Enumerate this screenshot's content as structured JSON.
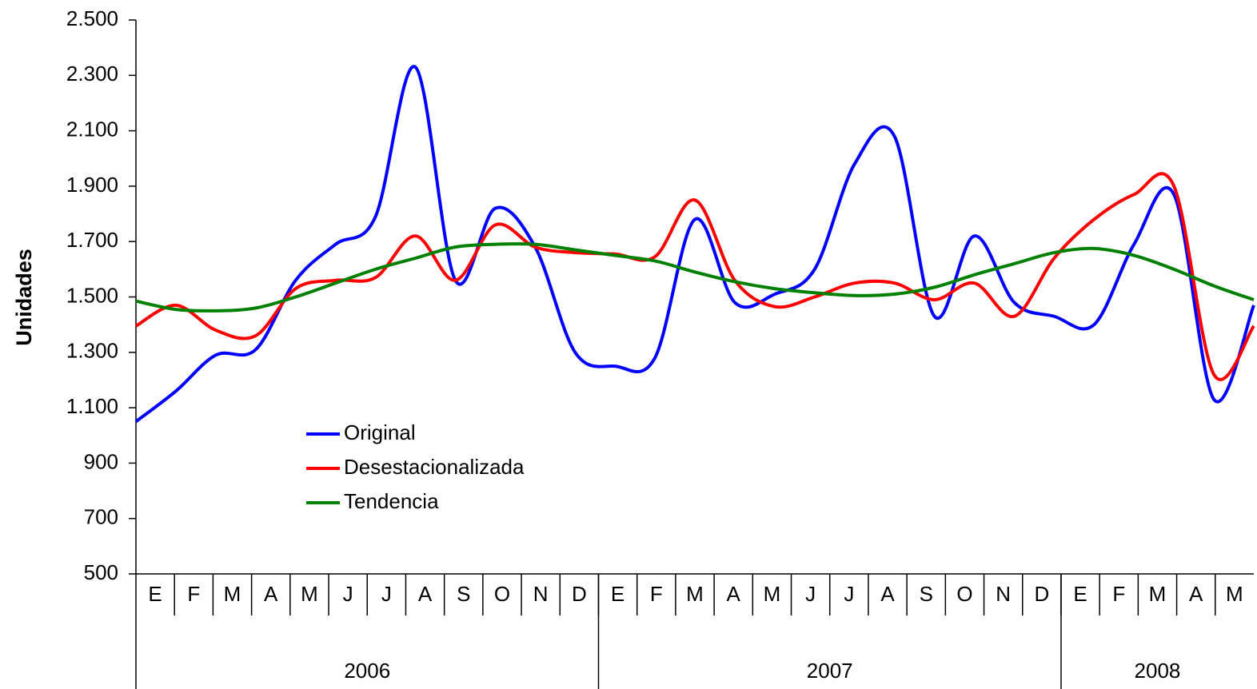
{
  "chart_data": {
    "type": "line",
    "y_label": "Unidades",
    "categories": [
      "E",
      "F",
      "M",
      "A",
      "M",
      "J",
      "J",
      "A",
      "S",
      "O",
      "N",
      "D",
      "E",
      "F",
      "M",
      "A",
      "M",
      "J",
      "J",
      "A",
      "S",
      "O",
      "N",
      "D",
      "E",
      "F",
      "M",
      "A",
      "M"
    ],
    "groups": [
      {
        "label": "2006",
        "size": 12
      },
      {
        "label": "2007",
        "size": 12
      },
      {
        "label": "2008",
        "size": 5
      }
    ],
    "series": [
      {
        "name": "Original",
        "color": "#0000ff",
        "values": [
          1050,
          1160,
          1290,
          1310,
          1560,
          1690,
          1790,
          2330,
          1560,
          1820,
          1680,
          1300,
          1250,
          1280,
          1780,
          1480,
          1510,
          1600,
          1980,
          2080,
          1430,
          1720,
          1480,
          1430,
          1400,
          1690,
          1870,
          1130,
          1470
        ]
      },
      {
        "name": "Desestacionalizada",
        "color": "#ff0000",
        "values": [
          1395,
          1470,
          1380,
          1360,
          1530,
          1560,
          1570,
          1720,
          1560,
          1760,
          1680,
          1660,
          1655,
          1645,
          1850,
          1560,
          1465,
          1500,
          1550,
          1550,
          1490,
          1550,
          1430,
          1640,
          1780,
          1870,
          1900,
          1220,
          1395
        ]
      },
      {
        "name": "Tendencia",
        "color": "#008000",
        "values": [
          1485,
          1455,
          1450,
          1460,
          1500,
          1550,
          1600,
          1640,
          1680,
          1690,
          1690,
          1670,
          1650,
          1630,
          1590,
          1555,
          1530,
          1515,
          1505,
          1510,
          1535,
          1580,
          1620,
          1660,
          1675,
          1650,
          1600,
          1540,
          1490
        ]
      }
    ],
    "ylim": [
      500,
      2500
    ],
    "yticks": [
      500,
      700,
      900,
      {
        "value": 1100,
        "label": "1.100"
      },
      {
        "value": 1300,
        "label": "1.300"
      },
      {
        "value": 1500,
        "label": "1.500"
      },
      {
        "value": 1700,
        "label": "1.700"
      },
      {
        "value": 1900,
        "label": "1.900"
      },
      {
        "value": 2100,
        "label": "2.100"
      },
      {
        "value": 2300,
        "label": "2.300"
      },
      {
        "value": 2500,
        "label": "2.500"
      }
    ],
    "grid": false,
    "legend": "center-left"
  }
}
